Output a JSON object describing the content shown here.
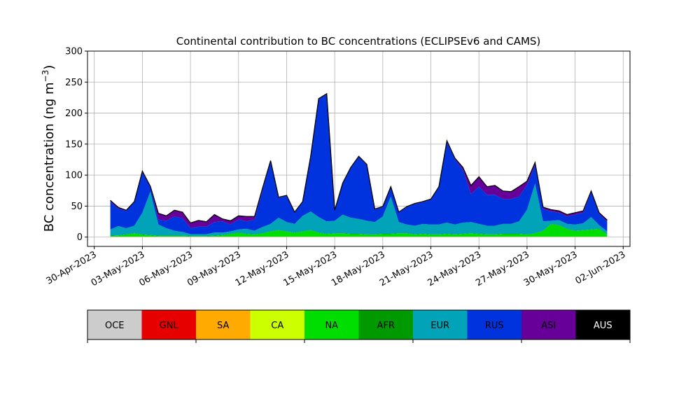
{
  "chart_data": {
    "type": "area",
    "title": "Continental contribution to BC concentrations (ECLIPSEv6 and CAMS)",
    "ylabel": "BC concentration (ng m",
    "ylabel_sup": "−3",
    "ylabel_close": ")",
    "xlabel": "",
    "ylim": [
      -15,
      300
    ],
    "xlim": [
      "2023-04-30",
      "2023-06-02"
    ],
    "y_ticks": [
      0,
      50,
      100,
      150,
      200,
      250,
      300
    ],
    "x_ticks": [
      "30-Apr-2023",
      "03-May-2023",
      "06-May-2023",
      "09-May-2023",
      "12-May-2023",
      "15-May-2023",
      "18-May-2023",
      "21-May-2023",
      "24-May-2023",
      "27-May-2023",
      "30-May-2023",
      "02-Jun-2023"
    ],
    "grid": true,
    "stacked": true,
    "x_dates": [
      "2023-05-01",
      "2023-05-01T12:00",
      "2023-05-02",
      "2023-05-02T12:00",
      "2023-05-03",
      "2023-05-03T12:00",
      "2023-05-04",
      "2023-05-04T12:00",
      "2023-05-05",
      "2023-05-05T12:00",
      "2023-05-06",
      "2023-05-06T12:00",
      "2023-05-07",
      "2023-05-07T12:00",
      "2023-05-08",
      "2023-05-08T12:00",
      "2023-05-09",
      "2023-05-09T12:00",
      "2023-05-10",
      "2023-05-10T12:00",
      "2023-05-11",
      "2023-05-11T12:00",
      "2023-05-12",
      "2023-05-12T12:00",
      "2023-05-13",
      "2023-05-13T12:00",
      "2023-05-14",
      "2023-05-14T12:00",
      "2023-05-15",
      "2023-05-15T12:00",
      "2023-05-16",
      "2023-05-16T12:00",
      "2023-05-17",
      "2023-05-17T12:00",
      "2023-05-18",
      "2023-05-18T12:00",
      "2023-05-19",
      "2023-05-19T12:00",
      "2023-05-20",
      "2023-05-20T12:00",
      "2023-05-21",
      "2023-05-21T12:00",
      "2023-05-22",
      "2023-05-22T12:00",
      "2023-05-23",
      "2023-05-23T12:00",
      "2023-05-24",
      "2023-05-24T12:00",
      "2023-05-25",
      "2023-05-25T12:00",
      "2023-05-26",
      "2023-05-26T12:00",
      "2023-05-27",
      "2023-05-27T12:00",
      "2023-05-28",
      "2023-05-28T12:00",
      "2023-05-29",
      "2023-05-29T12:00",
      "2023-05-30",
      "2023-05-30T12:00",
      "2023-05-31",
      "2023-05-31T12:00",
      "2023-06-01"
    ],
    "series": [
      {
        "name": "OCE",
        "color": "#cccccc",
        "values": [
          0.5,
          0.5,
          0.5,
          0.5,
          0.5,
          0.5,
          0.5,
          0.5,
          0.5,
          0.5,
          0.5,
          0.5,
          0.5,
          0.5,
          0.5,
          0.5,
          0.5,
          0.5,
          0.5,
          0.5,
          0.5,
          0.5,
          0.5,
          0.5,
          0.5,
          0.5,
          0.5,
          0.5,
          0.5,
          0.5,
          0.5,
          0.5,
          0.5,
          0.5,
          0.5,
          0.5,
          0.5,
          0.5,
          0.5,
          0.5,
          0.5,
          0.5,
          0.5,
          0.5,
          0.5,
          0.5,
          0.5,
          0.5,
          0.5,
          0.5,
          0.5,
          0.5,
          0.5,
          0.5,
          0.5,
          0.5,
          0.5,
          0.5,
          0.5,
          0.5,
          0.5,
          0.5,
          0.5
        ]
      },
      {
        "name": "GNL",
        "color": "#e60000",
        "values": [
          0,
          0,
          0,
          0,
          0,
          0,
          0,
          0,
          0,
          0,
          0,
          0,
          0,
          0,
          0,
          0,
          0,
          0,
          0,
          0,
          0,
          0,
          0,
          0,
          0,
          0,
          0,
          0,
          0,
          0,
          0,
          0,
          0,
          0,
          0,
          0,
          0,
          0,
          0,
          0,
          0,
          0,
          0,
          0,
          0,
          0,
          0,
          0,
          0,
          0,
          0,
          0,
          0,
          0,
          0,
          0,
          0,
          0,
          0,
          0,
          0,
          0,
          0
        ]
      },
      {
        "name": "SA",
        "color": "#ffaa00",
        "values": [
          0,
          0,
          0,
          0,
          0,
          0,
          0,
          0,
          0,
          0,
          0,
          0,
          0,
          0,
          0,
          0,
          0,
          0,
          0,
          0,
          0,
          0,
          0,
          0,
          0,
          0,
          0,
          0,
          0,
          0,
          0,
          0,
          0,
          0,
          0,
          0,
          0,
          0,
          0,
          0,
          0,
          0,
          0,
          0,
          0,
          0,
          0,
          0,
          0,
          0,
          0,
          0,
          0,
          0,
          0,
          0,
          0,
          0,
          0,
          0,
          0,
          0,
          0
        ]
      },
      {
        "name": "CA",
        "color": "#ccff00",
        "values": [
          0.3,
          0.3,
          0.3,
          0.3,
          0.3,
          0.3,
          0.3,
          0.3,
          0.3,
          0.3,
          0.3,
          0.3,
          0.3,
          0.3,
          0.3,
          0.3,
          0.3,
          0.3,
          0.3,
          0.3,
          0.3,
          0.3,
          0.3,
          0.3,
          0.3,
          0.3,
          0.3,
          0.3,
          0.3,
          0.3,
          0.3,
          0.3,
          0.3,
          0.3,
          0.3,
          0.3,
          0.3,
          0.3,
          0.3,
          0.3,
          0.3,
          0.3,
          0.3,
          0.3,
          0.3,
          0.3,
          0.3,
          0.3,
          0.3,
          0.3,
          0.3,
          0.3,
          0.3,
          0.3,
          0.3,
          0.3,
          0.3,
          0.3,
          0.3,
          0.3,
          0.3,
          0.3,
          0.3
        ]
      },
      {
        "name": "NA",
        "color": "#00dd00",
        "values": [
          1,
          1.5,
          3,
          5,
          3,
          2,
          1,
          1,
          1,
          1,
          0.5,
          0.5,
          0.5,
          1,
          2,
          4,
          6,
          4,
          3,
          5,
          8,
          10,
          8,
          6,
          8,
          10,
          6,
          4,
          5,
          5,
          4,
          4,
          3,
          3,
          4,
          4,
          5,
          5,
          3,
          4,
          3,
          3,
          4,
          3,
          4,
          5,
          4,
          3,
          3,
          4,
          4,
          4,
          3,
          5,
          9,
          20,
          18,
          12,
          9,
          10,
          11,
          12,
          3
        ]
      },
      {
        "name": "AFR",
        "color": "#009900",
        "values": [
          0.5,
          0.5,
          0.5,
          0.5,
          0.5,
          0.5,
          0.5,
          0.5,
          0.5,
          0.5,
          0.5,
          0.5,
          0.5,
          0.5,
          0.5,
          0.5,
          0.5,
          0.5,
          0.5,
          0.5,
          0.5,
          0.5,
          0.5,
          0.5,
          0.5,
          0.5,
          0.5,
          0.5,
          0.5,
          0.5,
          0.5,
          0.5,
          0.5,
          0.5,
          0.5,
          0.5,
          0.5,
          0.5,
          0.5,
          0.5,
          0.5,
          0.5,
          0.5,
          0.5,
          0.5,
          0.5,
          0.5,
          0.5,
          0.5,
          0.5,
          0.5,
          0.5,
          0.5,
          0.5,
          0.5,
          0.5,
          0.5,
          0.5,
          0.5,
          0.5,
          0.5,
          0.5,
          0.5
        ]
      },
      {
        "name": "EUR",
        "color": "#00a3b8",
        "values": [
          10,
          15,
          10,
          12,
          35,
          70,
          18,
          12,
          8,
          6,
          3,
          3,
          3,
          5,
          4,
          4,
          5,
          8,
          6,
          10,
          12,
          20,
          15,
          14,
          25,
          30,
          25,
          20,
          20,
          30,
          26,
          24,
          22,
          20,
          28,
          60,
          18,
          14,
          14,
          16,
          16,
          16,
          18,
          16,
          18,
          18,
          16,
          14,
          14,
          16,
          16,
          20,
          40,
          80,
          15,
          5,
          8,
          8,
          10,
          11,
          20,
          6,
          5
        ]
      },
      {
        "name": "RUS",
        "color": "#0033dd",
        "values": [
          45,
          28,
          28,
          38,
          65,
          8,
          8,
          12,
          23,
          22,
          10,
          12,
          12,
          17,
          18,
          11,
          16,
          12,
          18,
          60,
          100,
          32,
          42,
          18,
          22,
          88,
          190,
          205,
          16,
          50,
          80,
          100,
          90,
          20,
          15,
          15,
          15,
          28,
          35,
          35,
          40,
          60,
          130,
          105,
          85,
          45,
          60,
          50,
          50,
          40,
          40,
          40,
          40,
          30,
          20,
          15,
          12,
          12,
          16,
          17,
          40,
          18,
          16
        ]
      },
      {
        "name": "ASI",
        "color": "#660099",
        "values": [
          2,
          2,
          1,
          1,
          2,
          0.5,
          10,
          8,
          10,
          10,
          8,
          10,
          8,
          12,
          4,
          6,
          6,
          8,
          5,
          3,
          2,
          1,
          1,
          1,
          1,
          1,
          1,
          1,
          1,
          1,
          1,
          1,
          1,
          1,
          1,
          1,
          1,
          1,
          1,
          1,
          1,
          1,
          2,
          2,
          4,
          14,
          16,
          13,
          15,
          13,
          12,
          16,
          6,
          4,
          3,
          3,
          3,
          3,
          3,
          3,
          2,
          2,
          2
        ]
      },
      {
        "name": "AUS",
        "color": "#000000",
        "values": [
          0,
          0,
          0,
          0,
          0,
          0,
          0,
          0,
          0,
          0,
          0,
          0,
          0,
          0,
          0,
          0,
          0,
          0,
          0,
          0,
          0,
          0,
          0,
          0,
          0,
          0,
          0,
          0,
          0,
          0,
          0,
          0,
          0,
          0,
          0,
          0,
          0,
          0,
          0,
          0,
          0,
          0,
          0,
          0,
          0,
          0,
          0,
          0,
          0,
          0,
          0,
          0,
          0,
          0,
          0,
          0,
          0,
          0,
          0,
          0,
          0,
          0,
          0
        ]
      }
    ],
    "legend": {
      "placement": "bottom",
      "style": "colorbar",
      "labels": [
        "OCE",
        "GNL",
        "SA",
        "CA",
        "NA",
        "AFR",
        "EUR",
        "RUS",
        "ASI",
        "AUS"
      ],
      "label_colors": [
        "#000000",
        "#000000",
        "#000000",
        "#000000",
        "#000000",
        "#000000",
        "#000000",
        "#000000",
        "#000000",
        "#ffffff"
      ]
    }
  }
}
